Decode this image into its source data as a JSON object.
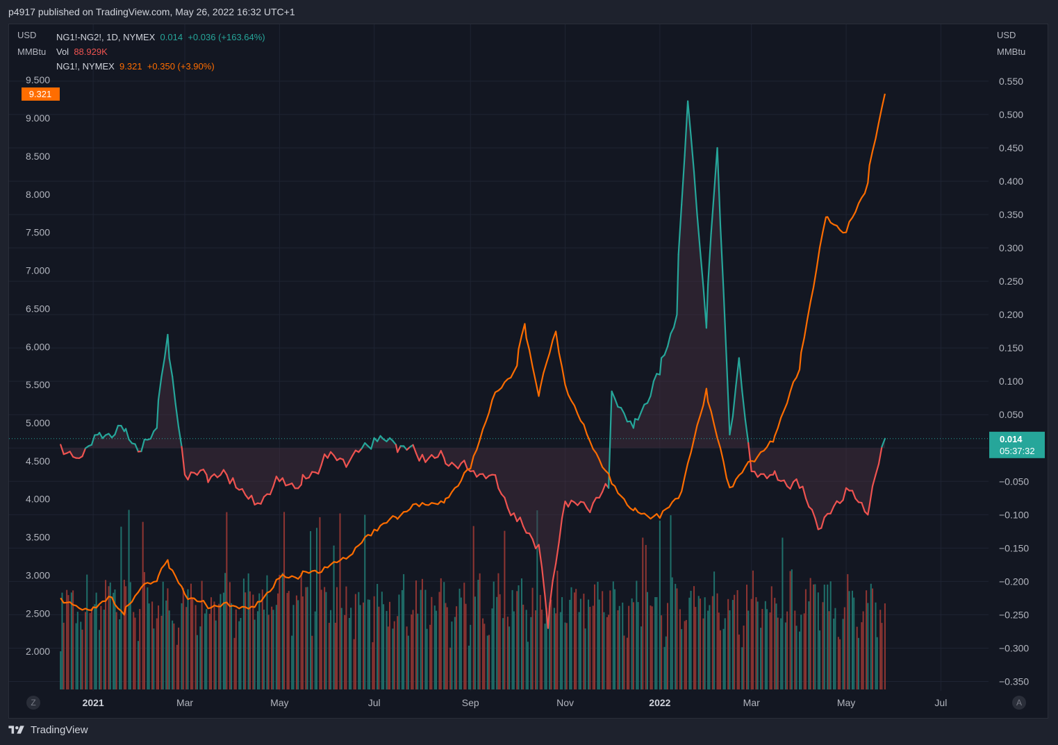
{
  "header": {
    "published": "p4917 published on TradingView.com, May 26, 2022 16:32 UTC+1"
  },
  "footer": {
    "brand": "TradingView",
    "scale_btn_left": "Z",
    "scale_btn_right": "A"
  },
  "legend": {
    "spread": {
      "name": "NG1!-NG2!, 1D, NYMEX",
      "value": "0.014",
      "change": "+0.036 (+163.64%)"
    },
    "vol": {
      "name": "Vol",
      "value": "88.929K"
    },
    "ng1": {
      "name": "NG1!, NYMEX",
      "value": "9.321",
      "change": "+0.350 (+3.90%)"
    }
  },
  "colors": {
    "background": "#131722",
    "grid": "#1f2433",
    "text": "#b2b5be",
    "spread_up": "#26a69a",
    "spread_down": "#ef5350",
    "ng1": "#ff6d00",
    "vol_up": "#1f6f6a",
    "vol_down": "#8e3532"
  },
  "chart_data": {
    "type": "line",
    "left_axis": {
      "unit_line1": "USD",
      "unit_line2": "MMBtu",
      "ticks": [
        9.5,
        9.0,
        8.5,
        8.0,
        7.5,
        7.0,
        6.5,
        6.0,
        5.5,
        5.0,
        4.5,
        4.0,
        3.5,
        3.0,
        2.5,
        2.0
      ],
      "tick_labels": [
        "9.500",
        "9.000",
        "8.500",
        "8.000",
        "7.500",
        "7.000",
        "6.500",
        "6.000",
        "5.500",
        "5.000",
        "4.500",
        "4.000",
        "3.500",
        "3.000",
        "2.500",
        "2.000"
      ],
      "ylim": [
        1.5,
        9.73
      ]
    },
    "right_axis": {
      "unit_line1": "USD",
      "unit_line2": "MMBtu",
      "ticks": [
        0.55,
        0.5,
        0.45,
        0.4,
        0.35,
        0.3,
        0.25,
        0.2,
        0.15,
        0.1,
        0.05,
        0.0,
        -0.05,
        -0.1,
        -0.15,
        -0.2,
        -0.25,
        -0.3,
        -0.35
      ],
      "tick_labels": [
        "0.550",
        "0.500",
        "0.450",
        "0.400",
        "0.350",
        "0.300",
        "0.250",
        "0.200",
        "0.150",
        "0.100",
        "0.050",
        "",
        "−0.050",
        "−0.100",
        "−0.150",
        "−0.200",
        "−0.250",
        "−0.300",
        "−0.350"
      ],
      "ylim": [
        -0.362,
        0.578
      ]
    },
    "x_axis": {
      "xlim": [
        "2020-12-10",
        "2022-07-25"
      ],
      "ticks": [
        "2021-01-01",
        "2021-03-01",
        "2021-05-01",
        "2021-07-01",
        "2021-09-01",
        "2021-11-01",
        "2022-01-01",
        "2022-03-01",
        "2022-05-01",
        "2022-07-01"
      ],
      "tick_labels": [
        "2021",
        "Mar",
        "May",
        "Jul",
        "Sep",
        "Nov",
        "2022",
        "Mar",
        "May",
        "Jul"
      ]
    },
    "price_labels": {
      "ng1_last": "9.321",
      "spread_last": "0.014",
      "countdown": "05:37:32"
    },
    "series": [
      {
        "name": "NG1!, NYMEX",
        "axis": "left",
        "points": [
          [
            "2020-12-11",
            2.7
          ],
          [
            "2020-12-21",
            2.6
          ],
          [
            "2020-12-31",
            2.54
          ],
          [
            "2021-01-11",
            2.72
          ],
          [
            "2021-01-21",
            2.48
          ],
          [
            "2021-02-01",
            2.84
          ],
          [
            "2021-02-11",
            2.92
          ],
          [
            "2021-02-18",
            3.2
          ],
          [
            "2021-03-01",
            2.75
          ],
          [
            "2021-03-15",
            2.6
          ],
          [
            "2021-04-01",
            2.6
          ],
          [
            "2021-04-15",
            2.58
          ],
          [
            "2021-05-01",
            2.96
          ],
          [
            "2021-05-15",
            3.0
          ],
          [
            "2021-06-01",
            3.1
          ],
          [
            "2021-06-15",
            3.25
          ],
          [
            "2021-07-01",
            3.6
          ],
          [
            "2021-07-15",
            3.76
          ],
          [
            "2021-08-01",
            3.95
          ],
          [
            "2021-08-15",
            3.95
          ],
          [
            "2021-09-01",
            4.4
          ],
          [
            "2021-09-15",
            5.3
          ],
          [
            "2021-10-01",
            5.75
          ],
          [
            "2021-10-06",
            6.3
          ],
          [
            "2021-10-15",
            5.35
          ],
          [
            "2021-10-26",
            6.2
          ],
          [
            "2021-11-01",
            5.5
          ],
          [
            "2021-11-15",
            4.85
          ],
          [
            "2021-12-01",
            4.2
          ],
          [
            "2021-12-15",
            3.85
          ],
          [
            "2022-01-01",
            3.75
          ],
          [
            "2022-01-15",
            4.1
          ],
          [
            "2022-01-31",
            5.45
          ],
          [
            "2022-02-15",
            4.15
          ],
          [
            "2022-03-01",
            4.5
          ],
          [
            "2022-03-15",
            4.75
          ],
          [
            "2022-04-01",
            5.7
          ],
          [
            "2022-04-18",
            7.7
          ],
          [
            "2022-05-01",
            7.5
          ],
          [
            "2022-05-15",
            8.15
          ],
          [
            "2022-05-26",
            9.32
          ]
        ]
      },
      {
        "name": "NG1!-NG2!, 1D, NYMEX",
        "axis": "right",
        "points": [
          [
            "2020-12-11",
            0.005
          ],
          [
            "2020-12-21",
            -0.015
          ],
          [
            "2021-01-04",
            0.02
          ],
          [
            "2021-01-21",
            0.025
          ],
          [
            "2021-02-01",
            -0.005
          ],
          [
            "2021-02-11",
            0.03
          ],
          [
            "2021-02-18",
            0.17
          ],
          [
            "2021-03-01",
            -0.04
          ],
          [
            "2021-03-15",
            -0.04
          ],
          [
            "2021-04-01",
            -0.045
          ],
          [
            "2021-04-15",
            -0.085
          ],
          [
            "2021-05-01",
            -0.05
          ],
          [
            "2021-05-15",
            -0.055
          ],
          [
            "2021-06-01",
            -0.015
          ],
          [
            "2021-06-15",
            -0.02
          ],
          [
            "2021-07-01",
            0.015
          ],
          [
            "2021-07-15",
            0.005
          ],
          [
            "2021-08-01",
            -0.01
          ],
          [
            "2021-08-15",
            -0.015
          ],
          [
            "2021-09-01",
            -0.035
          ],
          [
            "2021-09-15",
            -0.04
          ],
          [
            "2021-10-01",
            -0.11
          ],
          [
            "2021-10-15",
            -0.145
          ],
          [
            "2021-10-21",
            -0.27
          ],
          [
            "2021-11-01",
            -0.08
          ],
          [
            "2021-11-15",
            -0.09
          ],
          [
            "2021-11-29",
            -0.06
          ],
          [
            "2021-12-01",
            0.085
          ],
          [
            "2021-12-15",
            0.03
          ],
          [
            "2022-01-01",
            0.11
          ],
          [
            "2022-01-12",
            0.2
          ],
          [
            "2022-01-19",
            0.52
          ],
          [
            "2022-01-31",
            0.18
          ],
          [
            "2022-02-07",
            0.45
          ],
          [
            "2022-02-15",
            0.02
          ],
          [
            "2022-02-21",
            0.135
          ],
          [
            "2022-03-01",
            -0.035
          ],
          [
            "2022-03-15",
            -0.04
          ],
          [
            "2022-04-01",
            -0.06
          ],
          [
            "2022-04-15",
            -0.12
          ],
          [
            "2022-05-01",
            -0.06
          ],
          [
            "2022-05-15",
            -0.1
          ],
          [
            "2022-05-26",
            0.014
          ]
        ]
      }
    ],
    "volume_series": {
      "name": "Vol",
      "last_value": "88.929K",
      "scale": "relative",
      "count": 360
    }
  }
}
